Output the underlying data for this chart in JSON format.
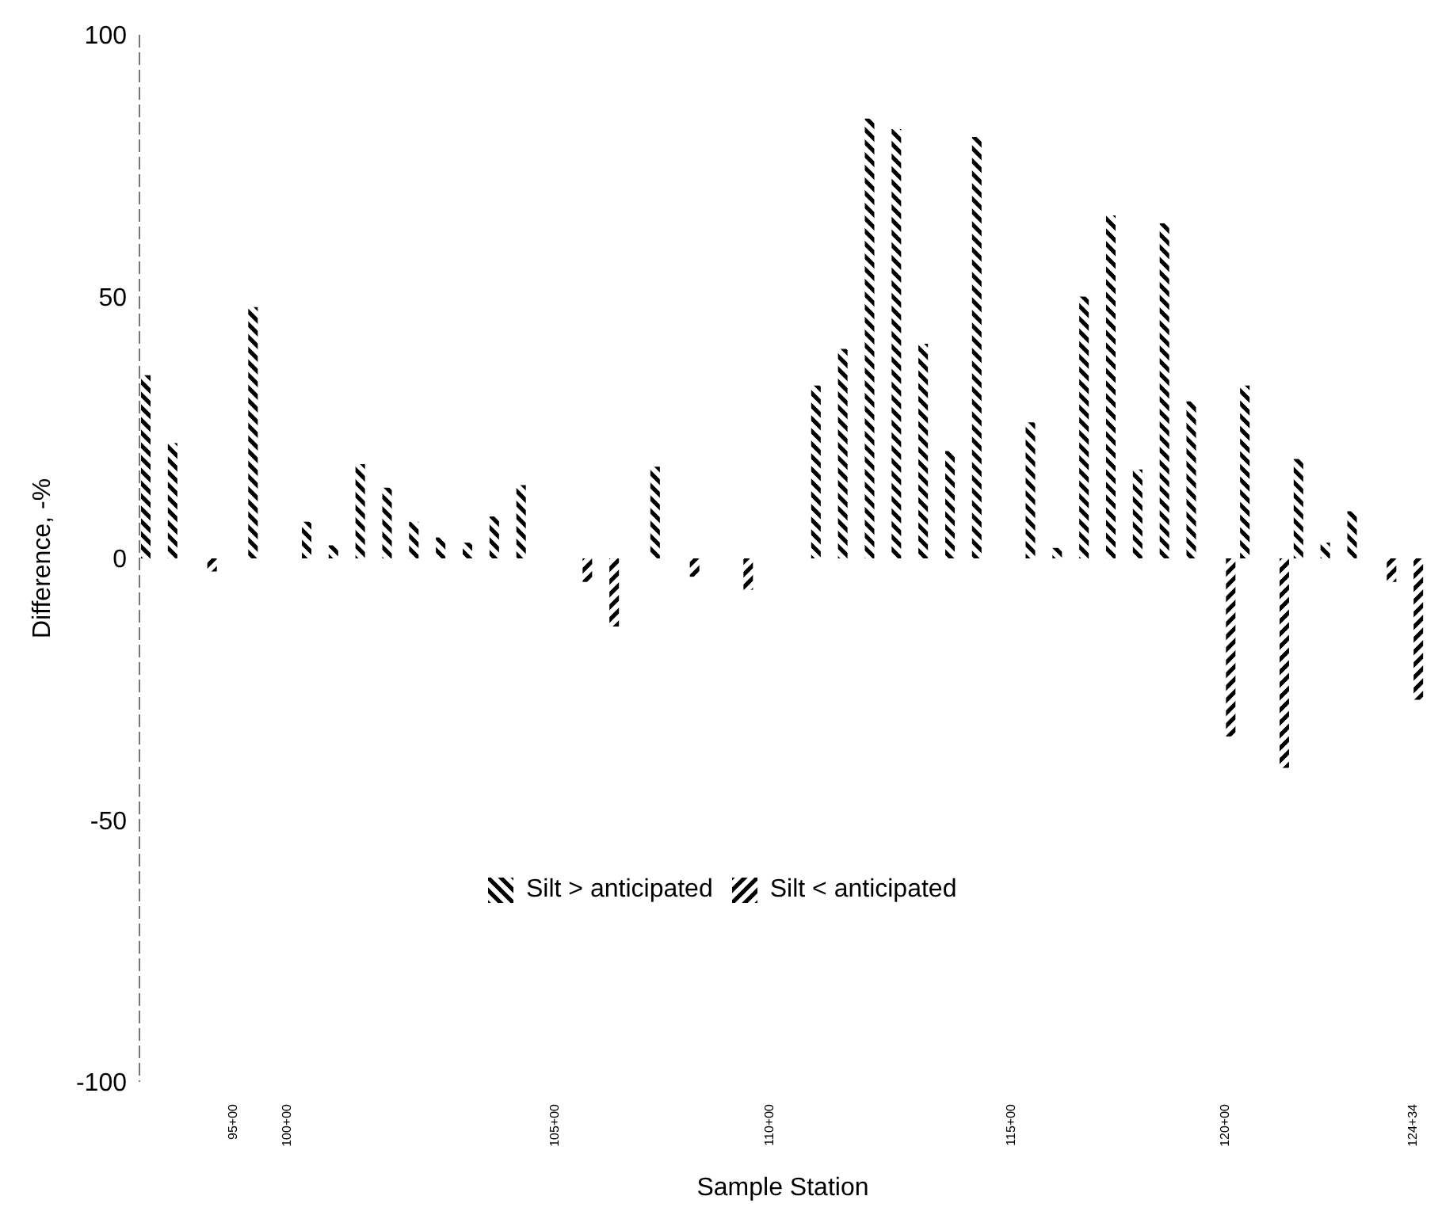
{
  "chart_data": {
    "type": "bar",
    "xlabel": "Sample Station",
    "ylabel": "Difference, -%",
    "categories": [
      null,
      null,
      null,
      "95+00",
      null,
      "100+00",
      null,
      null,
      null,
      null,
      null,
      null,
      null,
      null,
      null,
      "105+00",
      null,
      null,
      null,
      null,
      null,
      null,
      null,
      "110+00",
      null,
      null,
      null,
      null,
      null,
      null,
      null,
      null,
      "115+00",
      null,
      null,
      null,
      null,
      null,
      null,
      null,
      "120+00",
      null,
      null,
      null,
      null,
      null,
      null,
      "124+34"
    ],
    "series": [
      {
        "name": "Silt > anticipated",
        "color": "#000000",
        "values": [
          35,
          22,
          null,
          null,
          48,
          null,
          7,
          2.5,
          18,
          13.5,
          7,
          4,
          3,
          8,
          14,
          null,
          null,
          null,
          null,
          17.5,
          null,
          null,
          null,
          null,
          null,
          33,
          40,
          84,
          82,
          41,
          20.5,
          80.5,
          null,
          26,
          2,
          50,
          65.5,
          17,
          64,
          30,
          null,
          33,
          null,
          19,
          3,
          9,
          null,
          null
        ]
      },
      {
        "name": "Silt < anticipated",
        "color": "#000000",
        "values": [
          null,
          null,
          -2.5,
          null,
          null,
          null,
          null,
          null,
          null,
          null,
          null,
          null,
          null,
          null,
          null,
          null,
          -4.5,
          -13,
          null,
          null,
          -3.5,
          null,
          -6,
          null,
          null,
          null,
          null,
          null,
          null,
          null,
          null,
          null,
          null,
          null,
          null,
          null,
          null,
          null,
          null,
          null,
          -34,
          null,
          -40,
          null,
          null,
          null,
          -4.5,
          -27
        ]
      }
    ],
    "ylim": [
      -100,
      100
    ],
    "yticks": [
      -100,
      -50,
      0,
      50,
      100
    ],
    "legend": "bottom"
  }
}
